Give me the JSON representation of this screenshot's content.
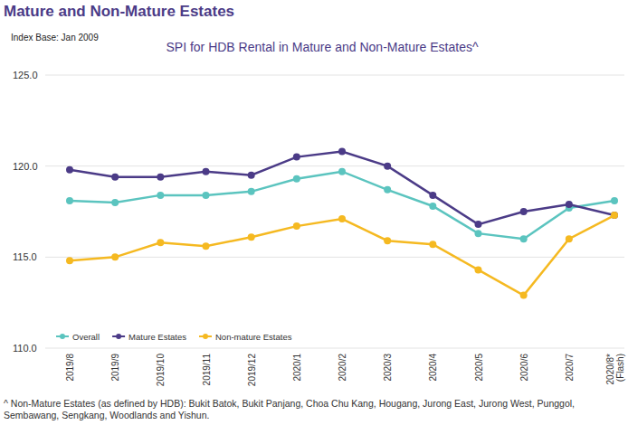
{
  "chart_data": {
    "type": "line",
    "title": "Mature and Non-Mature Estates",
    "subtitle": "SPI for HDB Rental in Mature and Non-Mature Estates^",
    "annotations": [
      "Index Base: Jan 2009",
      "^ Non-Mature Estates (as defined by HDB): Bukit Batok, Bukit Panjang, Choa Chu Kang, Hougang, Jurong East, Jurong West, Punggol, Sembawang, Sengkang, Woodlands and Yishun."
    ],
    "categories": [
      "2019/8",
      "2019/9",
      "2019/10",
      "2019/11",
      "2019/12",
      "2020/1",
      "2020/2",
      "2020/3",
      "2020/4",
      "2020/5",
      "2020/6",
      "2020/7",
      "2020/8* (Flash)"
    ],
    "series": [
      {
        "name": "Overall",
        "color": "#5bc4bf",
        "marker": "circle",
        "values": [
          118.1,
          118.0,
          118.4,
          118.4,
          118.6,
          119.3,
          119.7,
          118.7,
          117.8,
          116.3,
          116.0,
          117.7,
          118.1
        ]
      },
      {
        "name": "Mature Estates",
        "color": "#4b3b87",
        "marker": "circle",
        "values": [
          119.8,
          119.4,
          119.4,
          119.7,
          119.5,
          120.5,
          120.8,
          120.0,
          118.4,
          116.8,
          117.5,
          117.9,
          117.3
        ]
      },
      {
        "name": "Non-mature Estates",
        "color": "#f5b921",
        "marker": "circle",
        "values": [
          114.8,
          115.0,
          115.8,
          115.6,
          116.1,
          116.7,
          117.1,
          115.9,
          115.7,
          114.3,
          112.9,
          116.0,
          117.3
        ]
      }
    ],
    "ylim": [
      110,
      125
    ],
    "yticks": [
      {
        "value": 110,
        "label": "110.0"
      },
      {
        "value": 115,
        "label": "115.0"
      },
      {
        "value": 120,
        "label": "120.0"
      },
      {
        "value": 125,
        "label": "125.0"
      }
    ],
    "grid": true,
    "legend": "lower left"
  }
}
